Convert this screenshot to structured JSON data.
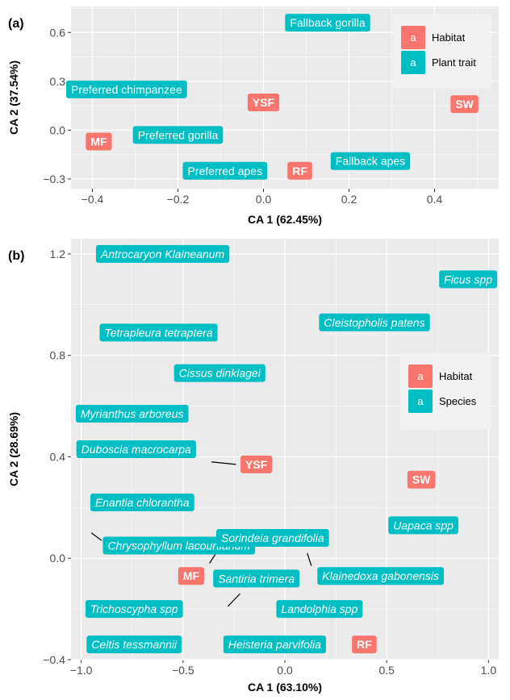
{
  "colors": {
    "habitat": "#F8766D",
    "plant": "#00BFC4",
    "panel_bg": "#EBEBEB",
    "grid": "#FFFFFF",
    "legend_bg": "#F2F2F2"
  },
  "chart_data": [
    {
      "type": "scatter",
      "panel_tag": "(a)",
      "xlabel": "CA 1 (62.45%)",
      "ylabel": "CA 2 (37.54%)",
      "xlim": [
        -0.45,
        0.55
      ],
      "ylim": [
        -0.36,
        0.76
      ],
      "xticks": [
        -0.4,
        -0.2,
        0.0,
        0.2,
        0.4
      ],
      "xtick_labels": [
        "−0.4",
        "−0.2",
        "0.0",
        "0.2",
        "0.4"
      ],
      "yticks": [
        -0.3,
        0.0,
        0.3,
        0.6
      ],
      "ytick_labels": [
        "−0.3",
        "0.0",
        "0.3",
        "0.6"
      ],
      "legend": {
        "position": "top-right",
        "key_glyph": "a",
        "items": [
          {
            "label": "Habitat",
            "group": "habitat"
          },
          {
            "label": "Plant trait",
            "group": "plant"
          }
        ]
      },
      "points": [
        {
          "label": "Fallback gorilla",
          "x": 0.15,
          "y": 0.66,
          "group": "plant"
        },
        {
          "label": "Preferred chimpanzee",
          "x": -0.32,
          "y": 0.25,
          "group": "plant"
        },
        {
          "label": "YSF",
          "x": 0.0,
          "y": 0.17,
          "group": "habitat"
        },
        {
          "label": "SW",
          "x": 0.47,
          "y": 0.16,
          "group": "habitat"
        },
        {
          "label": "MF",
          "x": -0.385,
          "y": -0.07,
          "group": "habitat"
        },
        {
          "label": "Preferred gorilla",
          "x": -0.2,
          "y": -0.03,
          "group": "plant"
        },
        {
          "label": "Preferred apes",
          "x": -0.09,
          "y": -0.25,
          "group": "plant"
        },
        {
          "label": "RF",
          "x": 0.085,
          "y": -0.25,
          "group": "habitat"
        },
        {
          "label": "Fallback apes",
          "x": 0.25,
          "y": -0.19,
          "group": "plant"
        }
      ]
    },
    {
      "type": "scatter",
      "panel_tag": "(b)",
      "xlabel": "CA 1 (63.10%)",
      "ylabel": "CA 2 (28.69%)",
      "xlim": [
        -1.05,
        1.05
      ],
      "ylim": [
        -0.4,
        1.26
      ],
      "xticks": [
        -1.0,
        -0.5,
        0.0,
        0.5,
        1.0
      ],
      "xtick_labels": [
        "−1.0",
        "−0.5",
        "0.0",
        "0.5",
        "1.0"
      ],
      "yticks": [
        -0.4,
        0.0,
        0.4,
        0.8,
        1.2
      ],
      "ytick_labels": [
        "−0.4",
        "0.0",
        "0.4",
        "0.8",
        "1.2"
      ],
      "legend": {
        "position": "right",
        "key_glyph": "a",
        "items": [
          {
            "label": "Habitat",
            "group": "habitat"
          },
          {
            "label": "Species",
            "group": "plant"
          }
        ]
      },
      "points": [
        {
          "label": "Antrocaryon Klaineanum",
          "x": -0.6,
          "y": 1.2,
          "group": "plant",
          "italic": true
        },
        {
          "label": "Ficus spp",
          "x": 0.9,
          "y": 1.1,
          "group": "plant",
          "italic": true
        },
        {
          "label": "Cleistopholis patens",
          "x": 0.44,
          "y": 0.93,
          "group": "plant",
          "italic": true
        },
        {
          "label": "Tetrapleura tetraptera",
          "x": -0.62,
          "y": 0.89,
          "group": "plant",
          "italic": true
        },
        {
          "label": "Cissus dinklagei",
          "x": -0.32,
          "y": 0.73,
          "group": "plant",
          "italic": true
        },
        {
          "label": "Myrianthus arboreus",
          "x": -0.75,
          "y": 0.57,
          "group": "plant",
          "italic": true
        },
        {
          "label": "Duboscia macrocarpa",
          "x": -0.73,
          "y": 0.43,
          "group": "plant",
          "italic": true
        },
        {
          "label": "YSF",
          "x": -0.14,
          "y": 0.37,
          "group": "habitat"
        },
        {
          "label": "SW",
          "x": 0.67,
          "y": 0.31,
          "group": "habitat"
        },
        {
          "label": "Enantia chlorantha",
          "x": -0.7,
          "y": 0.22,
          "group": "plant",
          "italic": true
        },
        {
          "label": "Uapaca spp",
          "x": 0.68,
          "y": 0.13,
          "group": "plant",
          "italic": true
        },
        {
          "label": "Chrysophyllum lacourtianum",
          "x": -0.52,
          "y": 0.05,
          "group": "plant",
          "italic": true
        },
        {
          "label": "Sorindeia grandifolia",
          "x": -0.06,
          "y": 0.08,
          "group": "plant",
          "italic": true
        },
        {
          "label": "Klainedoxa gabonensis",
          "x": 0.47,
          "y": -0.07,
          "group": "plant",
          "italic": true
        },
        {
          "label": "MF",
          "x": -0.46,
          "y": -0.07,
          "group": "habitat"
        },
        {
          "label": "Santiria trimera",
          "x": -0.14,
          "y": -0.08,
          "group": "plant",
          "italic": true
        },
        {
          "label": "Trichoscypha spp",
          "x": -0.74,
          "y": -0.2,
          "group": "plant",
          "italic": true
        },
        {
          "label": "Landolphia spp",
          "x": 0.17,
          "y": -0.2,
          "group": "plant",
          "italic": true
        },
        {
          "label": "Celtis tessmannii",
          "x": -0.74,
          "y": -0.34,
          "group": "plant",
          "italic": true
        },
        {
          "label": "Heisteria parvifolia",
          "x": -0.05,
          "y": -0.34,
          "group": "plant",
          "italic": true
        },
        {
          "label": "RF",
          "x": 0.39,
          "y": -0.34,
          "group": "habitat"
        }
      ],
      "segments": [
        {
          "x1": -0.36,
          "y1": 0.38,
          "x2": -0.24,
          "y2": 0.37
        },
        {
          "x1": -0.95,
          "y1": 0.1,
          "x2": -0.9,
          "y2": 0.07
        },
        {
          "x1": -0.33,
          "y1": 0.03,
          "x2": -0.37,
          "y2": -0.02
        },
        {
          "x1": 0.11,
          "y1": 0.02,
          "x2": 0.13,
          "y2": -0.03
        },
        {
          "x1": -0.22,
          "y1": -0.14,
          "x2": -0.28,
          "y2": -0.19
        }
      ]
    }
  ]
}
